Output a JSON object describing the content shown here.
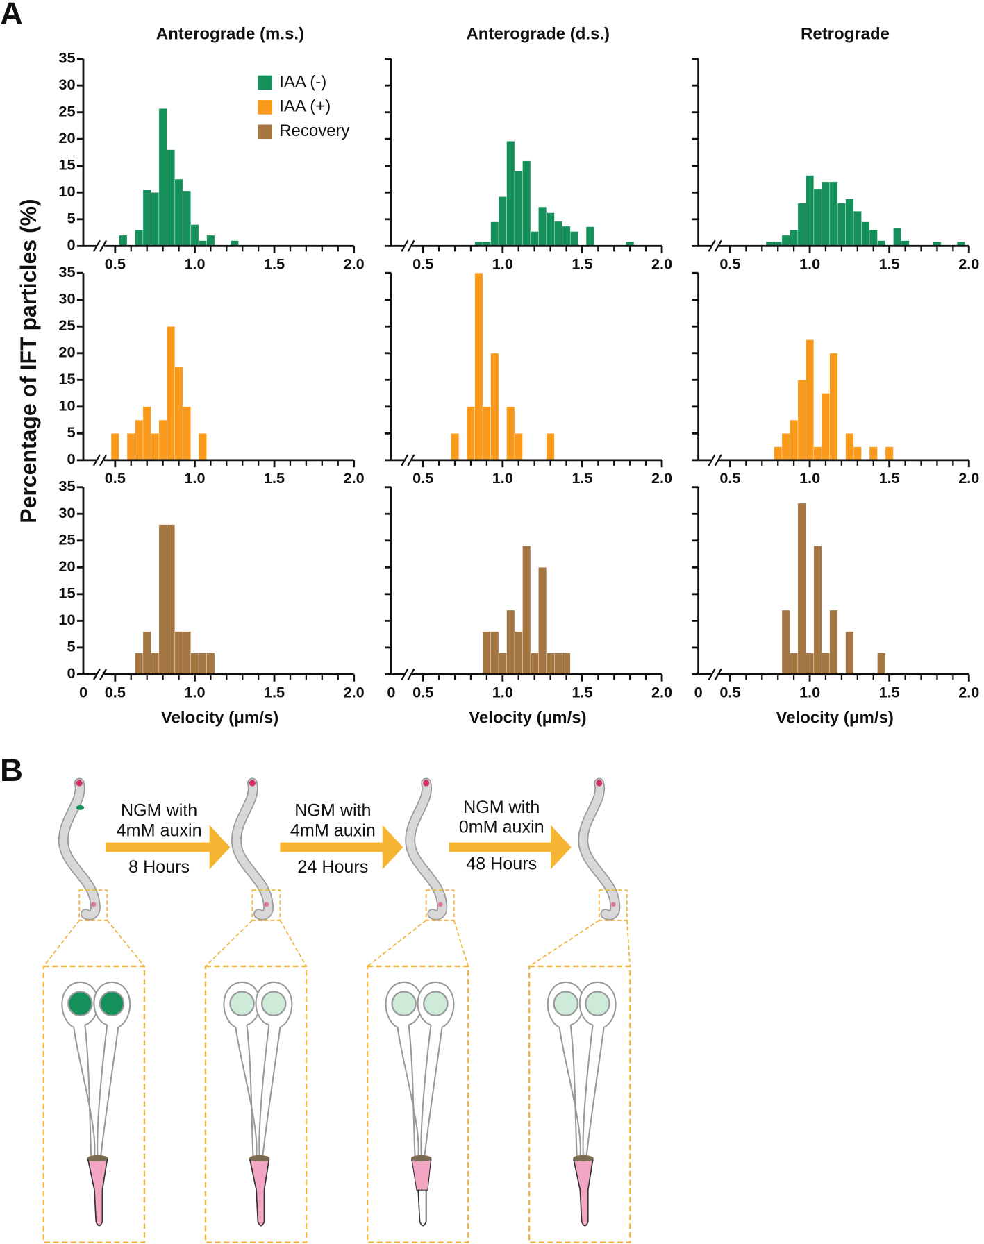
{
  "panel_labels": [
    "A",
    "B"
  ],
  "chart_data": [
    {
      "type": "histogram",
      "title": "Anterograde (m.s.)",
      "ylabel": "Percentage of IFT particles (%)",
      "color": "#15905a",
      "show_ytick_labels": true,
      "xbreak": true,
      "legend": [
        {
          "name": "IAA (-)",
          "color": "#15905a"
        },
        {
          "name": "IAA (+)",
          "color": "#f99a1c"
        },
        {
          "name": "Recovery",
          "color": "#a37642"
        }
      ],
      "bins": [
        0.475,
        0.525,
        0.575,
        0.625,
        0.675,
        0.725,
        0.775,
        0.825,
        0.875,
        0.925,
        0.975,
        1.025,
        1.075,
        1.125,
        1.175,
        1.225,
        1.275,
        1.325,
        1.375,
        1.425,
        1.475,
        1.525,
        1.575,
        1.625,
        1.675,
        1.725,
        1.775,
        1.825,
        1.875,
        1.925,
        1.975
      ],
      "values": [
        0,
        2,
        0,
        3,
        10.5,
        10,
        25.7,
        18,
        12.5,
        10.3,
        4,
        1,
        2,
        0,
        0,
        1,
        0,
        0,
        0,
        0,
        0,
        0,
        0,
        0,
        0,
        0,
        0,
        0,
        0,
        0
      ],
      "xlim": [
        0.3,
        2.0
      ],
      "xticks": [
        0.5,
        {
          "value": 1,
          "label": "1.0"
        },
        1.5,
        {
          "value": 2,
          "label": "2.0"
        }
      ],
      "xminor": [
        0.6,
        0.7,
        0.8,
        0.9,
        1.1,
        1.2,
        1.3,
        1.4,
        1.6,
        1.7,
        1.8,
        1.9
      ],
      "ylim": [
        0,
        35
      ],
      "yticks": [
        0,
        5,
        10,
        15,
        20,
        25,
        30,
        35
      ]
    },
    {
      "type": "histogram",
      "title": "Anterograde (d.s.)",
      "color": "#15905a",
      "show_ytick_labels": false,
      "xbreak": true,
      "bins": [
        0.475,
        0.525,
        0.575,
        0.625,
        0.675,
        0.725,
        0.775,
        0.825,
        0.875,
        0.925,
        0.975,
        1.025,
        1.075,
        1.125,
        1.175,
        1.225,
        1.275,
        1.325,
        1.375,
        1.425,
        1.475,
        1.525,
        1.575,
        1.625,
        1.675,
        1.725,
        1.775,
        1.825,
        1.875,
        1.925,
        1.975
      ],
      "values": [
        0,
        0,
        0,
        0,
        0,
        0,
        0,
        0.8,
        0.8,
        4.5,
        9.2,
        19.6,
        14,
        15.9,
        2.7,
        7.3,
        6.2,
        4.6,
        3.7,
        2.7,
        0,
        3.6,
        0,
        0,
        0,
        0,
        0.8,
        0,
        0,
        0
      ],
      "xlim": [
        0.3,
        2.0
      ],
      "xticks": [
        0.5,
        {
          "value": 1,
          "label": "1.0"
        },
        1.5,
        {
          "value": 2,
          "label": "2.0"
        }
      ],
      "xminor": [
        0.6,
        0.7,
        0.8,
        0.9,
        1.1,
        1.2,
        1.3,
        1.4,
        1.6,
        1.7,
        1.8,
        1.9
      ],
      "ylim": [
        0,
        35
      ],
      "yticks": [
        0,
        5,
        10,
        15,
        20,
        25,
        30,
        35
      ]
    },
    {
      "type": "histogram",
      "title": "Retrograde",
      "color": "#15905a",
      "show_ytick_labels": false,
      "xbreak": true,
      "bins": [
        0.475,
        0.525,
        0.575,
        0.625,
        0.675,
        0.725,
        0.775,
        0.825,
        0.875,
        0.925,
        0.975,
        1.025,
        1.075,
        1.125,
        1.175,
        1.225,
        1.275,
        1.325,
        1.375,
        1.425,
        1.475,
        1.525,
        1.575,
        1.625,
        1.675,
        1.725,
        1.775,
        1.825,
        1.875,
        1.925,
        1.975
      ],
      "values": [
        0,
        0,
        0,
        0,
        0,
        0.8,
        0.8,
        2,
        3,
        8,
        13.2,
        10.7,
        12,
        12,
        8,
        8.8,
        6.5,
        4.5,
        3,
        1,
        0,
        3.4,
        1,
        0,
        0,
        0,
        0.8,
        0,
        0,
        0.8
      ],
      "xlim": [
        0.3,
        2.0
      ],
      "xticks": [
        0.5,
        {
          "value": 1,
          "label": "1.0"
        },
        1.5,
        {
          "value": 2,
          "label": "2.0"
        }
      ],
      "xminor": [
        0.6,
        0.7,
        0.8,
        0.9,
        1.1,
        1.2,
        1.3,
        1.4,
        1.6,
        1.7,
        1.8,
        1.9
      ],
      "ylim": [
        0,
        35
      ],
      "yticks": [
        0,
        5,
        10,
        15,
        20,
        25,
        30,
        35
      ]
    },
    {
      "type": "histogram",
      "color": "#f99a1c",
      "show_ytick_labels": true,
      "xbreak": true,
      "bins": [
        0.475,
        0.525,
        0.575,
        0.625,
        0.675,
        0.725,
        0.775,
        0.825,
        0.875,
        0.925,
        0.975,
        1.025,
        1.075,
        1.125,
        1.175,
        1.225,
        1.275,
        1.325,
        1.375,
        1.425,
        1.475,
        1.525,
        1.575,
        1.625,
        1.675,
        1.725,
        1.775,
        1.825,
        1.875,
        1.925,
        1.975
      ],
      "values": [
        5,
        0,
        5,
        7.5,
        10,
        5,
        7.5,
        25,
        17.5,
        10,
        0,
        5,
        0,
        0,
        0,
        0,
        0,
        0,
        0,
        0,
        0,
        0,
        0,
        0,
        0,
        0,
        0,
        0,
        0,
        0
      ],
      "xlim": [
        0.3,
        2.0
      ],
      "xticks": [
        0.5,
        {
          "value": 1,
          "label": "1.0"
        },
        1.5,
        {
          "value": 2,
          "label": "2.0"
        }
      ],
      "xminor": [
        0.6,
        0.7,
        0.8,
        0.9,
        1.1,
        1.2,
        1.3,
        1.4,
        1.6,
        1.7,
        1.8,
        1.9
      ],
      "ylim": [
        0,
        35
      ],
      "yticks": [
        0,
        5,
        10,
        15,
        20,
        25,
        30,
        35
      ]
    },
    {
      "type": "histogram",
      "color": "#f99a1c",
      "show_ytick_labels": false,
      "xbreak": true,
      "bins": [
        0.475,
        0.525,
        0.575,
        0.625,
        0.675,
        0.725,
        0.775,
        0.825,
        0.875,
        0.925,
        0.975,
        1.025,
        1.075,
        1.125,
        1.175,
        1.225,
        1.275,
        1.325,
        1.375,
        1.425,
        1.475,
        1.525,
        1.575,
        1.625,
        1.675,
        1.725,
        1.775,
        1.825,
        1.875,
        1.925,
        1.975
      ],
      "values": [
        0,
        0,
        0,
        0,
        5,
        0,
        10,
        35,
        10,
        20,
        0,
        10,
        5,
        0,
        0,
        0,
        5,
        0,
        0,
        0,
        0,
        0,
        0,
        0,
        0,
        0,
        0,
        0,
        0,
        0
      ],
      "xlim": [
        0.3,
        2.0
      ],
      "xticks": [
        0.5,
        {
          "value": 1,
          "label": "1.0"
        },
        1.5,
        {
          "value": 2,
          "label": "2.0"
        }
      ],
      "xminor": [
        0.6,
        0.7,
        0.8,
        0.9,
        1.1,
        1.2,
        1.3,
        1.4,
        1.6,
        1.7,
        1.8,
        1.9
      ],
      "ylim": [
        0,
        35
      ],
      "yticks": [
        0,
        5,
        10,
        15,
        20,
        25,
        30,
        35
      ]
    },
    {
      "type": "histogram",
      "color": "#f99a1c",
      "show_ytick_labels": false,
      "xbreak": true,
      "bins": [
        0.475,
        0.525,
        0.575,
        0.625,
        0.675,
        0.725,
        0.775,
        0.825,
        0.875,
        0.925,
        0.975,
        1.025,
        1.075,
        1.125,
        1.175,
        1.225,
        1.275,
        1.325,
        1.375,
        1.425,
        1.475,
        1.525,
        1.575,
        1.625,
        1.675,
        1.725,
        1.775,
        1.825,
        1.875,
        1.925,
        1.975
      ],
      "values": [
        0,
        0,
        0,
        0,
        0,
        0,
        2.5,
        5,
        7.5,
        15,
        22.5,
        2.5,
        12.5,
        20,
        0,
        5,
        2.5,
        0,
        2.5,
        0,
        2.5,
        0,
        0,
        0,
        0,
        0,
        0,
        0,
        0,
        0
      ],
      "xlim": [
        0.3,
        2.0
      ],
      "xticks": [
        0.5,
        {
          "value": 1,
          "label": "1.0"
        },
        1.5,
        {
          "value": 2,
          "label": "2.0"
        }
      ],
      "xminor": [
        0.6,
        0.7,
        0.8,
        0.9,
        1.1,
        1.2,
        1.3,
        1.4,
        1.6,
        1.7,
        1.8,
        1.9
      ],
      "ylim": [
        0,
        35
      ],
      "yticks": [
        0,
        5,
        10,
        15,
        20,
        25,
        30,
        35
      ]
    },
    {
      "type": "histogram",
      "xlabel": "Velocity (μm/s)",
      "color": "#a37642",
      "show_ytick_labels": true,
      "xbreak": true,
      "bins": [
        0.475,
        0.525,
        0.575,
        0.625,
        0.675,
        0.725,
        0.775,
        0.825,
        0.875,
        0.925,
        0.975,
        1.025,
        1.075,
        1.125,
        1.175,
        1.225,
        1.275,
        1.325,
        1.375,
        1.425,
        1.475,
        1.525,
        1.575,
        1.625,
        1.675,
        1.725,
        1.775,
        1.825,
        1.875,
        1.925,
        1.975
      ],
      "values": [
        0,
        0,
        0,
        4,
        8,
        4,
        28,
        28,
        8,
        8,
        4,
        4,
        4,
        0,
        0,
        0,
        0,
        0,
        0,
        0,
        0,
        0,
        0,
        0,
        0,
        0,
        0,
        0,
        0,
        0
      ],
      "xlim": [
        0.3,
        2.0
      ],
      "xticks": [
        0,
        0.5,
        {
          "value": 1,
          "label": "1.0"
        },
        1.5,
        {
          "value": 2,
          "label": "2.0"
        }
      ],
      "xminor": [
        0.6,
        0.7,
        0.8,
        0.9,
        1.1,
        1.2,
        1.3,
        1.4,
        1.6,
        1.7,
        1.8,
        1.9
      ],
      "ylim": [
        0,
        35
      ],
      "yticks": [
        0,
        5,
        10,
        15,
        20,
        25,
        30,
        35
      ]
    },
    {
      "type": "histogram",
      "xlabel": "Velocity (μm/s)",
      "color": "#a37642",
      "show_ytick_labels": false,
      "xbreak": true,
      "bins": [
        0.475,
        0.525,
        0.575,
        0.625,
        0.675,
        0.725,
        0.775,
        0.825,
        0.875,
        0.925,
        0.975,
        1.025,
        1.075,
        1.125,
        1.175,
        1.225,
        1.275,
        1.325,
        1.375,
        1.425,
        1.475,
        1.525,
        1.575,
        1.625,
        1.675,
        1.725,
        1.775,
        1.825,
        1.875,
        1.925,
        1.975
      ],
      "values": [
        0,
        0,
        0,
        0,
        0,
        0,
        0,
        0,
        8,
        8,
        4,
        12,
        8,
        24,
        4,
        20,
        4,
        4,
        4,
        0,
        0,
        0,
        0,
        0,
        0,
        0,
        0,
        0,
        0,
        0
      ],
      "xlim": [
        0.3,
        2.0
      ],
      "xticks": [
        0,
        0.5,
        {
          "value": 1,
          "label": "1.0"
        },
        1.5,
        {
          "value": 2,
          "label": "2.0"
        }
      ],
      "xminor": [
        0.6,
        0.7,
        0.8,
        0.9,
        1.1,
        1.2,
        1.3,
        1.4,
        1.6,
        1.7,
        1.8,
        1.9
      ],
      "ylim": [
        0,
        35
      ],
      "yticks": [
        0,
        5,
        10,
        15,
        20,
        25,
        30,
        35
      ]
    },
    {
      "type": "histogram",
      "xlabel": "Velocity (μm/s)",
      "color": "#a37642",
      "show_ytick_labels": false,
      "xbreak": true,
      "bins": [
        0.475,
        0.525,
        0.575,
        0.625,
        0.675,
        0.725,
        0.775,
        0.825,
        0.875,
        0.925,
        0.975,
        1.025,
        1.075,
        1.125,
        1.175,
        1.225,
        1.275,
        1.325,
        1.375,
        1.425,
        1.475,
        1.525,
        1.575,
        1.625,
        1.675,
        1.725,
        1.775,
        1.825,
        1.875,
        1.925,
        1.975
      ],
      "values": [
        0,
        0,
        0,
        0,
        0,
        0,
        0,
        12,
        4,
        32,
        4,
        24,
        4,
        12,
        0,
        8,
        0,
        0,
        0,
        4,
        0,
        0,
        0,
        0,
        0,
        0,
        0,
        0,
        0,
        0
      ],
      "xlim": [
        0.3,
        2.0
      ],
      "xticks": [
        0,
        0.5,
        {
          "value": 1,
          "label": "1.0"
        },
        1.5,
        {
          "value": 2,
          "label": "2.0"
        }
      ],
      "xminor": [
        0.6,
        0.7,
        0.8,
        0.9,
        1.1,
        1.2,
        1.3,
        1.4,
        1.6,
        1.7,
        1.8,
        1.9
      ],
      "ylim": [
        0,
        35
      ],
      "yticks": [
        0,
        5,
        10,
        15,
        20,
        25,
        30,
        35
      ]
    }
  ],
  "diagram": {
    "steps": [
      {
        "medium": "NGM with",
        "auxin": "4mM auxin",
        "time": "8 Hours"
      },
      {
        "medium": "NGM with",
        "auxin": "4mM auxin",
        "time": "24 Hours"
      },
      {
        "medium": "NGM with",
        "auxin": "0mM auxin",
        "time": "48 Hours"
      }
    ]
  }
}
